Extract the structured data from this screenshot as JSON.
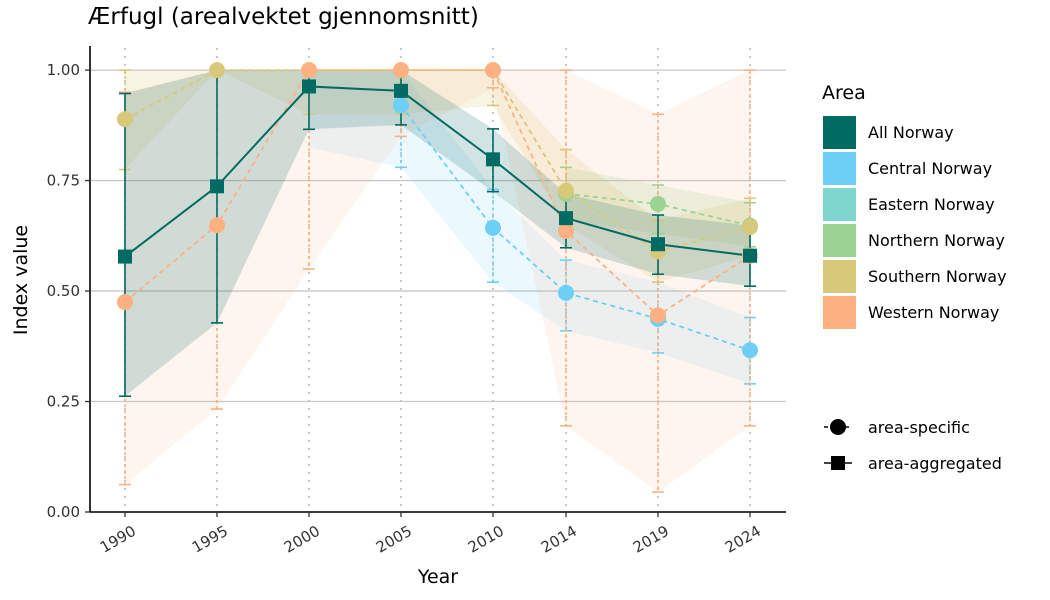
{
  "chart_data": {
    "type": "line",
    "title": "Ærfugl (arealvektet gjennomsnitt)",
    "xlabel": "Year",
    "ylabel": "Index value",
    "x": [
      "1990",
      "1995",
      "2000",
      "2005",
      "2010",
      "2014",
      "2019",
      "2024"
    ],
    "ylim": [
      0,
      1.05
    ],
    "yticks": [
      0,
      0.25,
      0.5,
      0.75,
      1.0
    ],
    "ytick_labels": [
      "0.00",
      "0.25",
      "0.50",
      "0.75",
      "1.00"
    ],
    "grid": "horizontal major lines; dotted vertical lines at each year",
    "legend": {
      "title": "Area",
      "position": "right",
      "shape_entries": [
        {
          "label": "area-specific",
          "marker": "circle",
          "linestyle": "dashed"
        },
        {
          "label": "area-aggregated",
          "marker": "square",
          "linestyle": "solid"
        }
      ]
    },
    "series": [
      {
        "name": "Central Norway",
        "color": "#6ECFF6",
        "marker": "circle",
        "linestyle": "dashed",
        "values": [
          null,
          null,
          null,
          0.92,
          0.643,
          0.496,
          0.437,
          0.366
        ],
        "lower": [
          null,
          null,
          0.825,
          0.78,
          0.52,
          0.41,
          0.36,
          0.29
        ],
        "upper": [
          null,
          null,
          1.0,
          1.0,
          0.73,
          0.57,
          0.52,
          0.44
        ]
      },
      {
        "name": "Eastern Norway",
        "color": "#7ED6CF",
        "marker": "circle",
        "linestyle": "dashed",
        "values": [
          null,
          null,
          null,
          null,
          null,
          null,
          null,
          null
        ],
        "lower": [
          null,
          null,
          null,
          null,
          null,
          null,
          null,
          null
        ],
        "upper": [
          null,
          null,
          null,
          null,
          null,
          null,
          null,
          null
        ]
      },
      {
        "name": "Northern Norway",
        "color": "#9BD492",
        "marker": "circle",
        "linestyle": "dashed",
        "values": [
          null,
          null,
          null,
          null,
          null,
          0.72,
          0.697,
          0.648
        ],
        "lower": [
          null,
          null,
          null,
          null,
          null,
          0.66,
          0.63,
          0.6
        ],
        "upper": [
          null,
          null,
          null,
          null,
          null,
          0.78,
          0.74,
          0.7
        ]
      },
      {
        "name": "Southern Norway",
        "color": "#D8C87A",
        "marker": "circle",
        "linestyle": "dashed",
        "values": [
          0.889,
          1.0,
          1.0,
          1.0,
          1.0,
          0.727,
          0.59,
          0.645
        ],
        "lower": [
          0.775,
          1.0,
          0.9,
          0.9,
          0.92,
          0.65,
          0.52,
          0.58
        ],
        "upper": [
          1.0,
          1.0,
          1.0,
          1.0,
          1.0,
          0.82,
          0.66,
          0.71
        ]
      },
      {
        "name": "Western Norway",
        "color": "#FDB183",
        "marker": "circle",
        "linestyle": "dashed",
        "values": [
          0.475,
          0.649,
          1.0,
          1.0,
          1.0,
          0.636,
          0.445,
          0.58
        ],
        "lower": [
          0.062,
          0.233,
          0.55,
          0.85,
          0.96,
          0.195,
          0.045,
          0.195
        ],
        "upper": [
          0.95,
          1.0,
          1.0,
          1.0,
          1.0,
          1.0,
          0.9,
          1.0
        ]
      },
      {
        "name": "All Norway",
        "color": "#006B63",
        "marker": "square",
        "linestyle": "solid",
        "values": [
          0.578,
          0.737,
          0.963,
          0.953,
          0.798,
          0.665,
          0.606,
          0.58
        ],
        "lower": [
          0.262,
          0.428,
          0.866,
          0.876,
          0.725,
          0.598,
          0.538,
          0.511
        ],
        "upper": [
          0.947,
          1.0,
          1.0,
          1.0,
          0.867,
          0.72,
          0.672,
          0.648
        ]
      }
    ]
  }
}
